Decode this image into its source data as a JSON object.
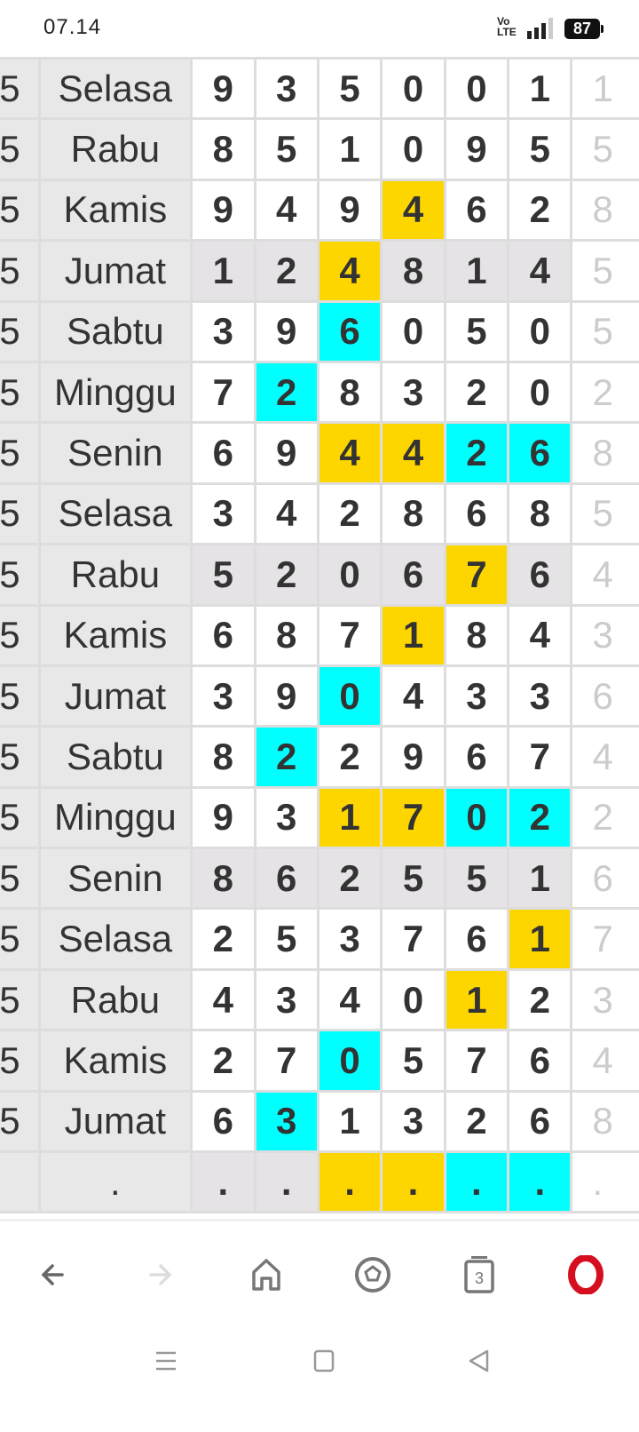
{
  "status_bar": {
    "time": "07.14",
    "network": "Vo LTE",
    "battery": "87"
  },
  "colors": {
    "yellow": "#fdd600",
    "cyan": "#00ffff",
    "shaded": "#e6e3e6",
    "day_bg": "#e8e8e8"
  },
  "table": {
    "rows": [
      {
        "prefix": "5",
        "day": "Selasa",
        "shaded": false,
        "digits": [
          "9",
          "3",
          "5",
          "0",
          "0",
          "1"
        ],
        "marks": [
          "",
          "",
          "",
          "",
          "",
          ""
        ],
        "last": "1"
      },
      {
        "prefix": "5",
        "day": "Rabu",
        "shaded": false,
        "digits": [
          "8",
          "5",
          "1",
          "0",
          "9",
          "5"
        ],
        "marks": [
          "",
          "",
          "",
          "",
          "",
          ""
        ],
        "last": "5"
      },
      {
        "prefix": "5",
        "day": "Kamis",
        "shaded": false,
        "digits": [
          "9",
          "4",
          "9",
          "4",
          "6",
          "2"
        ],
        "marks": [
          "",
          "",
          "",
          "y",
          "",
          ""
        ],
        "last": "8"
      },
      {
        "prefix": "5",
        "day": "Jumat",
        "shaded": true,
        "digits": [
          "1",
          "2",
          "4",
          "8",
          "1",
          "4"
        ],
        "marks": [
          "",
          "",
          "y",
          "",
          "",
          ""
        ],
        "last": "5"
      },
      {
        "prefix": "5",
        "day": "Sabtu",
        "shaded": false,
        "digits": [
          "3",
          "9",
          "6",
          "0",
          "5",
          "0"
        ],
        "marks": [
          "",
          "",
          "c",
          "",
          "",
          ""
        ],
        "last": "5"
      },
      {
        "prefix": "5",
        "day": "Minggu",
        "shaded": false,
        "digits": [
          "7",
          "2",
          "8",
          "3",
          "2",
          "0"
        ],
        "marks": [
          "",
          "c",
          "",
          "",
          "",
          ""
        ],
        "last": "2"
      },
      {
        "prefix": "5",
        "day": "Senin",
        "shaded": false,
        "digits": [
          "6",
          "9",
          "4",
          "4",
          "2",
          "6"
        ],
        "marks": [
          "",
          "",
          "y",
          "y",
          "c",
          "c"
        ],
        "last": "8"
      },
      {
        "prefix": "5",
        "day": "Selasa",
        "shaded": false,
        "digits": [
          "3",
          "4",
          "2",
          "8",
          "6",
          "8"
        ],
        "marks": [
          "",
          "",
          "",
          "",
          "",
          ""
        ],
        "last": "5"
      },
      {
        "prefix": "5",
        "day": "Rabu",
        "shaded": true,
        "digits": [
          "5",
          "2",
          "0",
          "6",
          "7",
          "6"
        ],
        "marks": [
          "",
          "",
          "",
          "",
          "y",
          ""
        ],
        "last": "4"
      },
      {
        "prefix": "5",
        "day": "Kamis",
        "shaded": false,
        "digits": [
          "6",
          "8",
          "7",
          "1",
          "8",
          "4"
        ],
        "marks": [
          "",
          "",
          "",
          "y",
          "",
          ""
        ],
        "last": "3"
      },
      {
        "prefix": "5",
        "day": "Jumat",
        "shaded": false,
        "digits": [
          "3",
          "9",
          "0",
          "4",
          "3",
          "3"
        ],
        "marks": [
          "",
          "",
          "c",
          "",
          "",
          ""
        ],
        "last": "6"
      },
      {
        "prefix": "5",
        "day": "Sabtu",
        "shaded": false,
        "digits": [
          "8",
          "2",
          "2",
          "9",
          "6",
          "7"
        ],
        "marks": [
          "",
          "c",
          "",
          "",
          "",
          ""
        ],
        "last": "4"
      },
      {
        "prefix": "5",
        "day": "Minggu",
        "shaded": false,
        "digits": [
          "9",
          "3",
          "1",
          "7",
          "0",
          "2"
        ],
        "marks": [
          "",
          "",
          "y",
          "y",
          "c",
          "c"
        ],
        "last": "2"
      },
      {
        "prefix": "5",
        "day": "Senin",
        "shaded": true,
        "digits": [
          "8",
          "6",
          "2",
          "5",
          "5",
          "1"
        ],
        "marks": [
          "",
          "",
          "",
          "",
          "",
          ""
        ],
        "last": "6"
      },
      {
        "prefix": "5",
        "day": "Selasa",
        "shaded": false,
        "digits": [
          "2",
          "5",
          "3",
          "7",
          "6",
          "1"
        ],
        "marks": [
          "",
          "",
          "",
          "",
          "",
          "y"
        ],
        "last": "7"
      },
      {
        "prefix": "5",
        "day": "Rabu",
        "shaded": false,
        "digits": [
          "4",
          "3",
          "4",
          "0",
          "1",
          "2"
        ],
        "marks": [
          "",
          "",
          "",
          "",
          "y",
          ""
        ],
        "last": "3"
      },
      {
        "prefix": "5",
        "day": "Kamis",
        "shaded": false,
        "digits": [
          "2",
          "7",
          "0",
          "5",
          "7",
          "6"
        ],
        "marks": [
          "",
          "",
          "c",
          "",
          "",
          ""
        ],
        "last": "4"
      },
      {
        "prefix": "5",
        "day": "Jumat",
        "shaded": false,
        "digits": [
          "6",
          "3",
          "1",
          "3",
          "2",
          "6"
        ],
        "marks": [
          "",
          "c",
          "",
          "",
          "",
          ""
        ],
        "last": "8"
      },
      {
        "prefix": "",
        "day": ".",
        "shaded": true,
        "digits": [
          ".",
          ".",
          ".",
          ".",
          ".",
          "."
        ],
        "marks": [
          "",
          "",
          "y",
          "y",
          "c",
          "c"
        ],
        "last": "."
      }
    ]
  },
  "browser_nav": {
    "tabs_count": "3",
    "icons": [
      "back-arrow-icon",
      "forward-arrow-icon",
      "home-icon",
      "soccer-ball-icon",
      "tabs-icon",
      "opera-icon"
    ]
  },
  "system_nav": {
    "icons": [
      "recents-icon",
      "home-square-icon",
      "back-triangle-icon"
    ]
  }
}
